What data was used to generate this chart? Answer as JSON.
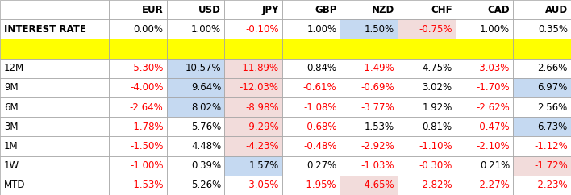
{
  "col_headers": [
    "EUR",
    "USD",
    "JPY",
    "GBP",
    "NZD",
    "CHF",
    "CAD",
    "AUD"
  ],
  "row_headers": [
    "INTEREST RATE",
    "",
    "12M",
    "9M",
    "6M",
    "3M",
    "1M",
    "1W",
    "MTD"
  ],
  "values": [
    [
      "0.00%",
      "1.00%",
      "-0.10%",
      "1.00%",
      "1.50%",
      "-0.75%",
      "1.00%",
      "0.35%"
    ],
    [
      "",
      "",
      "",
      "",
      "",
      "",
      "",
      ""
    ],
    [
      "-5.30%",
      "10.57%",
      "-11.89%",
      "0.84%",
      "-1.49%",
      "4.75%",
      "-3.03%",
      "2.66%"
    ],
    [
      "-4.00%",
      "9.64%",
      "-12.03%",
      "-0.61%",
      "-0.69%",
      "3.02%",
      "-1.70%",
      "6.97%"
    ],
    [
      "-2.64%",
      "8.02%",
      "-8.98%",
      "-1.08%",
      "-3.77%",
      "1.92%",
      "-2.62%",
      "2.56%"
    ],
    [
      "-1.78%",
      "5.76%",
      "-9.29%",
      "-0.68%",
      "1.53%",
      "0.81%",
      "-0.47%",
      "6.73%"
    ],
    [
      "-1.50%",
      "4.48%",
      "-4.23%",
      "-0.48%",
      "-2.92%",
      "-1.10%",
      "-2.10%",
      "-1.12%"
    ],
    [
      "-1.00%",
      "0.39%",
      "1.57%",
      "0.27%",
      "-1.03%",
      "-0.30%",
      "0.21%",
      "-1.72%"
    ],
    [
      "-1.53%",
      "5.26%",
      "-3.05%",
      "-1.95%",
      "-4.65%",
      "-2.82%",
      "-2.27%",
      "-2.23%"
    ]
  ],
  "cell_colors": [
    [
      "#ffffff",
      "#ffffff",
      "#ffffff",
      "#ffffff",
      "#c5d9f1",
      "#f2dcdb",
      "#ffffff",
      "#ffffff"
    ],
    [
      "#ffff00",
      "#ffff00",
      "#ffff00",
      "#ffff00",
      "#ffff00",
      "#ffff00",
      "#ffff00",
      "#ffff00"
    ],
    [
      "#ffffff",
      "#c5d9f1",
      "#f2dcdb",
      "#ffffff",
      "#ffffff",
      "#ffffff",
      "#ffffff",
      "#ffffff"
    ],
    [
      "#ffffff",
      "#c5d9f1",
      "#f2dcdb",
      "#ffffff",
      "#ffffff",
      "#ffffff",
      "#ffffff",
      "#c5d9f1"
    ],
    [
      "#ffffff",
      "#c5d9f1",
      "#f2dcdb",
      "#ffffff",
      "#ffffff",
      "#ffffff",
      "#ffffff",
      "#ffffff"
    ],
    [
      "#ffffff",
      "#ffffff",
      "#f2dcdb",
      "#ffffff",
      "#ffffff",
      "#ffffff",
      "#ffffff",
      "#c5d9f1"
    ],
    [
      "#ffffff",
      "#ffffff",
      "#f2dcdb",
      "#ffffff",
      "#ffffff",
      "#ffffff",
      "#ffffff",
      "#ffffff"
    ],
    [
      "#ffffff",
      "#ffffff",
      "#c5d9f1",
      "#ffffff",
      "#ffffff",
      "#ffffff",
      "#ffffff",
      "#f2dcdb"
    ],
    [
      "#ffffff",
      "#ffffff",
      "#ffffff",
      "#ffffff",
      "#f2dcdb",
      "#ffffff",
      "#ffffff",
      "#ffffff"
    ]
  ],
  "text_colors": [
    [
      "#000000",
      "#000000",
      "#ff0000",
      "#000000",
      "#000000",
      "#ff0000",
      "#000000",
      "#000000"
    ],
    [
      "#ffff00",
      "#ffff00",
      "#ffff00",
      "#ffff00",
      "#ffff00",
      "#ffff00",
      "#ffff00",
      "#ffff00"
    ],
    [
      "#ff0000",
      "#000000",
      "#ff0000",
      "#000000",
      "#ff0000",
      "#000000",
      "#ff0000",
      "#000000"
    ],
    [
      "#ff0000",
      "#000000",
      "#ff0000",
      "#ff0000",
      "#ff0000",
      "#000000",
      "#ff0000",
      "#000000"
    ],
    [
      "#ff0000",
      "#000000",
      "#ff0000",
      "#ff0000",
      "#ff0000",
      "#000000",
      "#ff0000",
      "#000000"
    ],
    [
      "#ff0000",
      "#000000",
      "#ff0000",
      "#ff0000",
      "#000000",
      "#000000",
      "#ff0000",
      "#000000"
    ],
    [
      "#ff0000",
      "#000000",
      "#ff0000",
      "#ff0000",
      "#ff0000",
      "#ff0000",
      "#ff0000",
      "#ff0000"
    ],
    [
      "#ff0000",
      "#000000",
      "#000000",
      "#000000",
      "#ff0000",
      "#ff0000",
      "#000000",
      "#ff0000"
    ],
    [
      "#ff0000",
      "#000000",
      "#ff0000",
      "#ff0000",
      "#ff0000",
      "#ff0000",
      "#ff0000",
      "#ff0000"
    ]
  ],
  "row_header_bolds": [
    true,
    false,
    false,
    false,
    false,
    false,
    false,
    false,
    false
  ],
  "grid_color": "#a0a0a0",
  "font_size": 8.5,
  "header_font_size": 8.5,
  "fig_width": 7.08,
  "fig_height": 2.42,
  "dpi": 100,
  "col_label_bg": "#ffffff",
  "row_label_bg_default": "#ffffff",
  "row_label_bg_yellow": "#ffff00",
  "row_label_bg_interest": "#ffffff"
}
